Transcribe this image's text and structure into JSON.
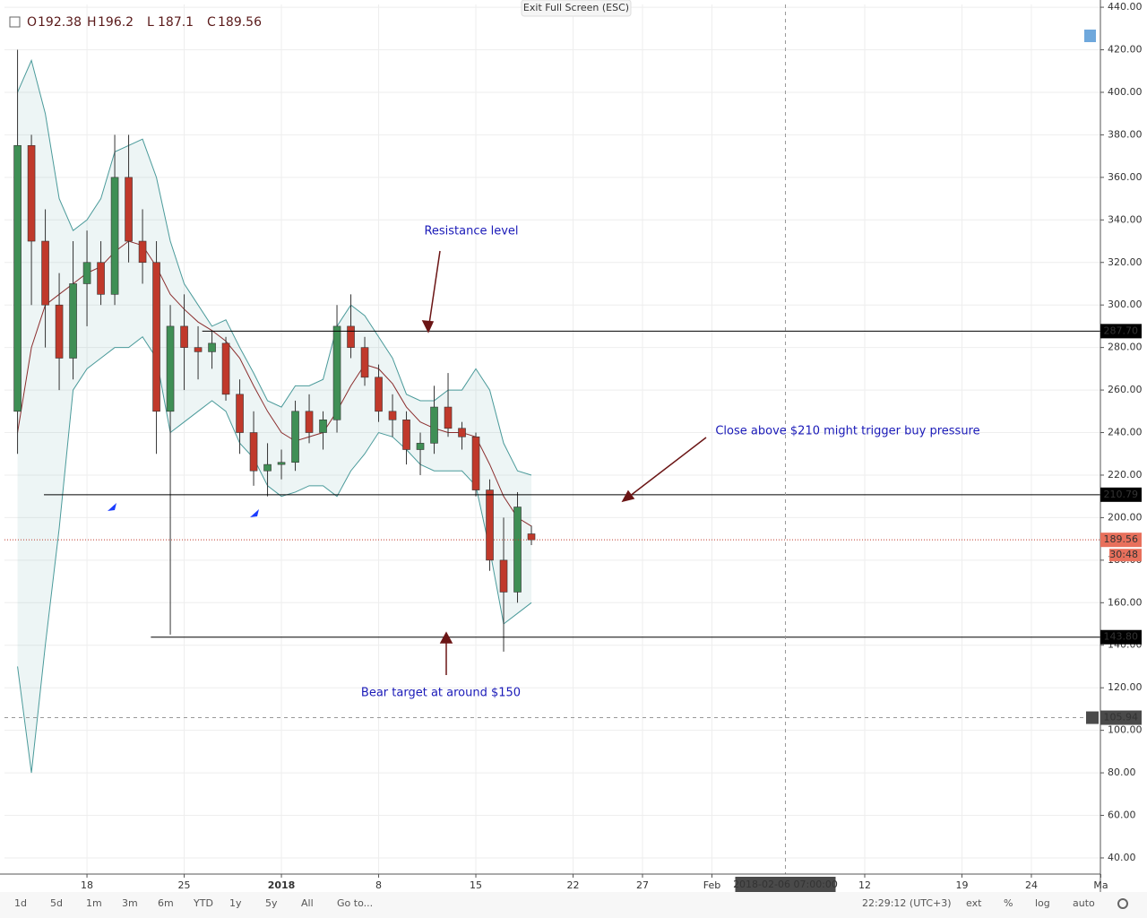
{
  "header": {
    "exit_button": "Exit Full Screen (ESC)"
  },
  "chart_data": {
    "type": "candlestick",
    "ohlc_keys": [
      "O",
      "H",
      "L",
      "C"
    ],
    "x": [
      12,
      13,
      14,
      15,
      16,
      17,
      18,
      19,
      20,
      21,
      22,
      23,
      24,
      25,
      26,
      27,
      28,
      29,
      30,
      31,
      32,
      33,
      34,
      35,
      36,
      37,
      38,
      39,
      40,
      41,
      42,
      43,
      44,
      45,
      46,
      47,
      48,
      49
    ],
    "open": [
      250,
      375,
      330,
      300,
      275,
      310,
      320,
      305,
      360,
      330,
      320,
      250,
      290,
      280,
      278,
      282,
      258,
      240,
      222,
      225,
      226,
      250,
      240,
      246,
      290,
      280,
      266,
      250,
      246,
      232,
      235,
      252,
      242,
      238,
      213,
      180,
      165,
      192.38
    ],
    "high": [
      420,
      380,
      345,
      315,
      330,
      335,
      330,
      380,
      380,
      345,
      330,
      300,
      305,
      290,
      288,
      285,
      265,
      250,
      235,
      232,
      255,
      258,
      250,
      300,
      305,
      285,
      272,
      258,
      250,
      240,
      262,
      268,
      245,
      240,
      218,
      200,
      212,
      196.2
    ],
    "low": [
      230,
      300,
      280,
      260,
      265,
      290,
      300,
      300,
      320,
      310,
      230,
      145,
      260,
      265,
      270,
      255,
      230,
      215,
      210,
      218,
      222,
      235,
      232,
      240,
      275,
      262,
      245,
      238,
      225,
      220,
      230,
      238,
      232,
      210,
      175,
      137,
      160,
      187.1
    ],
    "close": [
      375,
      330,
      300,
      275,
      310,
      320,
      305,
      360,
      330,
      320,
      250,
      290,
      280,
      278,
      282,
      258,
      240,
      222,
      225,
      226,
      250,
      240,
      246,
      290,
      280,
      266,
      250,
      246,
      232,
      235,
      252,
      242,
      238,
      213,
      180,
      165,
      205,
      189.56
    ],
    "ma": [
      240,
      280,
      300,
      305,
      310,
      315,
      318,
      325,
      330,
      328,
      318,
      305,
      298,
      292,
      288,
      283,
      275,
      262,
      250,
      240,
      236,
      238,
      240,
      250,
      262,
      272,
      270,
      263,
      252,
      245,
      242,
      240,
      240,
      238,
      225,
      210,
      200,
      196
    ],
    "upper": [
      400,
      415,
      390,
      350,
      335,
      340,
      350,
      372,
      375,
      378,
      360,
      330,
      310,
      300,
      290,
      293,
      280,
      268,
      255,
      252,
      262,
      262,
      265,
      290,
      300,
      295,
      285,
      275,
      258,
      255,
      255,
      260,
      260,
      270,
      260,
      235,
      222,
      220
    ],
    "lower": [
      130,
      80,
      140,
      195,
      260,
      270,
      275,
      280,
      280,
      285,
      275,
      240,
      245,
      250,
      255,
      250,
      235,
      228,
      215,
      210,
      212,
      215,
      215,
      210,
      222,
      230,
      240,
      238,
      232,
      225,
      222,
      222,
      222,
      215,
      185,
      150,
      155,
      160
    ],
    "up_color": "#3f8f55",
    "down_color": "#c0392b",
    "ma_color": "#8b2e2e",
    "band_color": "#4a9a9a",
    "xlim": [
      11.06,
      89.97
    ],
    "ylim": [
      32.4,
      441.3
    ],
    "xticks": [
      {
        "value": 17,
        "label": "18"
      },
      {
        "value": 24,
        "label": "25"
      },
      {
        "value": 31,
        "label": "2018"
      },
      {
        "value": 38,
        "label": "8"
      },
      {
        "value": 45,
        "label": "15"
      },
      {
        "value": 52,
        "label": "22"
      },
      {
        "value": 57,
        "label": "27"
      },
      {
        "value": 62,
        "label": "Feb"
      },
      {
        "value": 73,
        "label": "12"
      },
      {
        "value": 80,
        "label": "19"
      },
      {
        "value": 85,
        "label": "24"
      },
      {
        "value": 90,
        "label": "Ma"
      }
    ],
    "yticks": [
      {
        "value": 40,
        "label": "40.00"
      },
      {
        "value": 60,
        "label": "60.00"
      },
      {
        "value": 80,
        "label": "80.00"
      },
      {
        "value": 100,
        "label": "100.00"
      },
      {
        "value": 120,
        "label": "120.00"
      },
      {
        "value": 140,
        "label": "140.00"
      },
      {
        "value": 160,
        "label": "160.00"
      },
      {
        "value": 180,
        "label": "180.00"
      },
      {
        "value": 200,
        "label": "200.00"
      },
      {
        "value": 220,
        "label": "220.00"
      },
      {
        "value": 240,
        "label": "240.00"
      },
      {
        "value": 260,
        "label": "260.00"
      },
      {
        "value": 280,
        "label": "280.00"
      },
      {
        "value": 300,
        "label": "300.00"
      },
      {
        "value": 320,
        "label": "320.00"
      },
      {
        "value": 340,
        "label": "340.00"
      },
      {
        "value": 360,
        "label": "360.00"
      },
      {
        "value": 380,
        "label": "380.00"
      },
      {
        "value": 400,
        "label": "400.00"
      },
      {
        "value": 420,
        "label": "420.00"
      },
      {
        "value": 440,
        "label": "440.00"
      }
    ],
    "grid": true,
    "levels": [
      {
        "value": 287.7,
        "label": "287.70",
        "from": 25.3
      },
      {
        "value": 210.79,
        "from": 13.9
      },
      {
        "value": 143.8,
        "label": "143.80",
        "from": 21.6
      }
    ],
    "countdown": "30:48",
    "crosshair": {
      "x": 67.29,
      "time": "2018-02-06 07:00:00",
      "price": 105.94
    },
    "annotations": [
      "Resistance level",
      "Close above $210 might trigger buy pressure",
      "Bear target at around $150"
    ]
  },
  "toolbar": {
    "ranges": [
      "1d",
      "5d",
      "1m",
      "3m",
      "6m",
      "YTD",
      "1y",
      "5y",
      "All",
      "Go to..."
    ],
    "time": "22:29:12 (UTC+3)",
    "options": [
      "ext",
      "%",
      "log",
      "auto"
    ]
  }
}
